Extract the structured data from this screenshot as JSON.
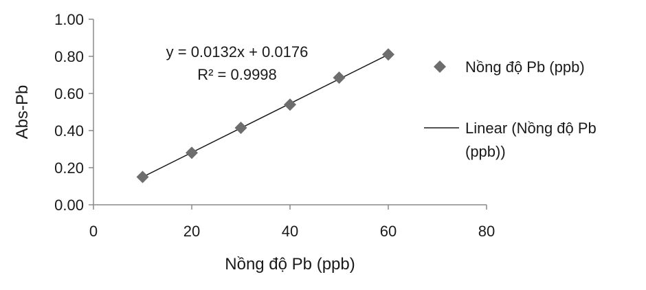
{
  "chart_data": {
    "type": "scatter",
    "xlabel": "Nồng độ Pb (ppb)",
    "ylabel": "Abs-Pb",
    "xlim": [
      0,
      80
    ],
    "ylim": [
      0,
      1.0
    ],
    "x_ticks": [
      "0",
      "20",
      "40",
      "60",
      "80"
    ],
    "y_ticks": [
      "0.00",
      "0.20",
      "0.40",
      "0.60",
      "0.80",
      "1.00"
    ],
    "grid": false,
    "legend_position": "right",
    "series": [
      {
        "name": "Nồng độ Pb (ppb)",
        "marker": "diamond",
        "color": "#6d6d6d",
        "x": [
          10,
          20,
          30,
          40,
          50,
          60
        ],
        "y": [
          0.15,
          0.28,
          0.415,
          0.54,
          0.685,
          0.81
        ]
      }
    ],
    "trendline": {
      "name": "Linear (Nồng độ Pb (ppb))",
      "name_line1": "Linear (Nồng độ Pb",
      "name_line2": "(ppb))",
      "color": "#1a1a1a",
      "slope": 0.0132,
      "intercept": 0.0176,
      "x_range": [
        10,
        60
      ],
      "equation": "y = 0.0132x + 0.0176",
      "r_squared": "R² = 0.9998"
    }
  }
}
